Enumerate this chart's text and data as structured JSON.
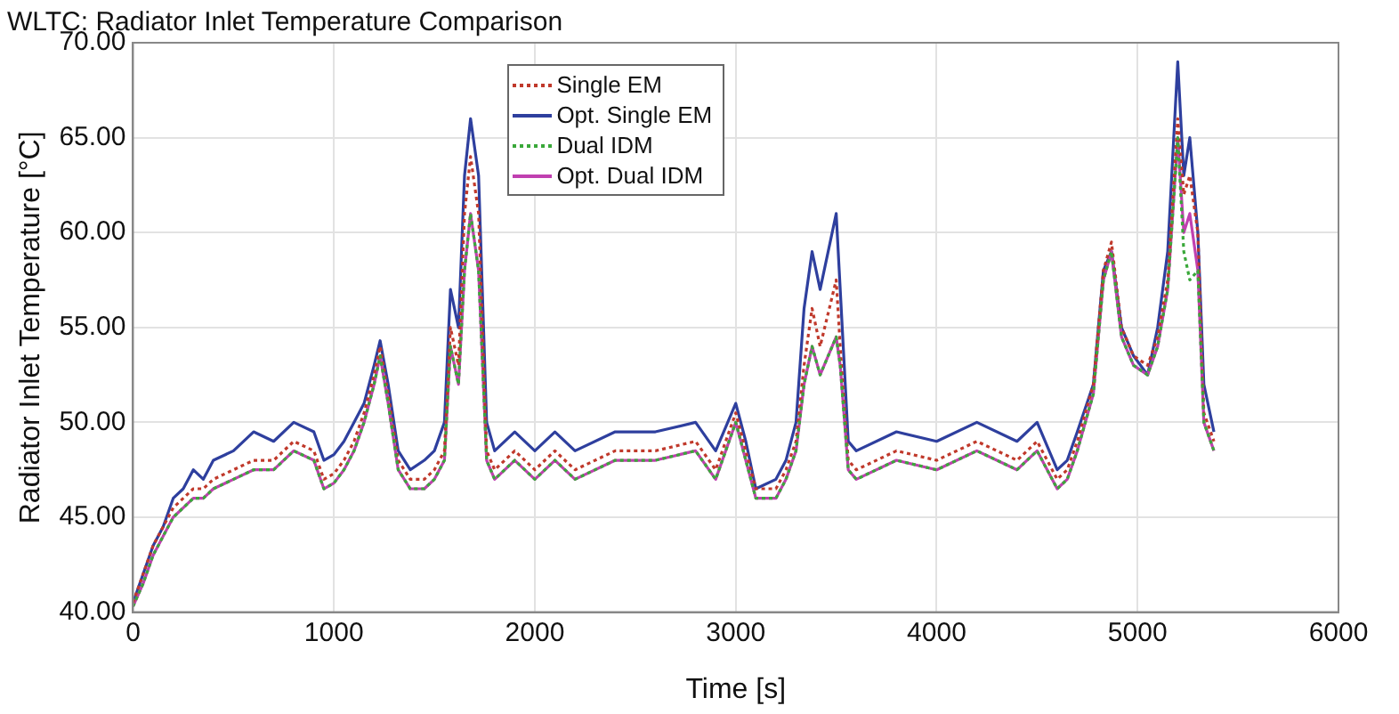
{
  "chart_data": {
    "type": "line",
    "title": "WLTC: Radiator Inlet Temperature Comparison",
    "xlabel": "Time [s]",
    "ylabel": "Radiator Inlet Temperature [°C]",
    "x": [
      0,
      50,
      100,
      150,
      200,
      250,
      300,
      350,
      400,
      500,
      600,
      700,
      800,
      900,
      950,
      1000,
      1050,
      1100,
      1150,
      1200,
      1230,
      1270,
      1320,
      1380,
      1450,
      1500,
      1550,
      1580,
      1620,
      1650,
      1680,
      1720,
      1760,
      1800,
      1900,
      2000,
      2100,
      2200,
      2400,
      2600,
      2800,
      2900,
      3000,
      3050,
      3100,
      3200,
      3250,
      3300,
      3340,
      3380,
      3420,
      3500,
      3520,
      3560,
      3600,
      3800,
      4000,
      4200,
      4400,
      4500,
      4600,
      4650,
      4700,
      4780,
      4830,
      4870,
      4920,
      4980,
      5050,
      5100,
      5150,
      5200,
      5230,
      5260,
      5300,
      5330,
      5380
    ],
    "series": [
      {
        "name": "Single EM",
        "color": "#c0392b",
        "line_style": "dotted",
        "values": [
          40.5,
          42,
          43.5,
          44.5,
          45.5,
          46,
          46.5,
          46.5,
          47,
          47.5,
          48,
          48,
          49,
          48.5,
          47,
          47.3,
          48,
          49,
          50.5,
          52.5,
          54,
          51.5,
          48,
          47,
          47,
          47.5,
          48.5,
          55,
          53,
          61,
          64,
          61,
          48.5,
          47.5,
          48.5,
          47.5,
          48.5,
          47.5,
          48.5,
          48.5,
          49,
          47.5,
          50.5,
          48.5,
          46.5,
          46.5,
          47.5,
          49,
          53,
          56,
          54,
          57.5,
          54,
          48,
          47.5,
          48.5,
          48,
          49,
          48,
          49,
          47,
          47.5,
          49,
          52,
          58,
          59.5,
          55,
          53.5,
          53,
          54.5,
          57.5,
          66,
          62,
          63,
          60,
          50.5,
          49
        ]
      },
      {
        "name": "Opt. Single EM",
        "color": "#2e3f9e",
        "line_style": "solid",
        "values": [
          40.5,
          42,
          43.5,
          44.5,
          46,
          46.5,
          47.5,
          47,
          48,
          48.5,
          49.5,
          49,
          50,
          49.5,
          48,
          48.3,
          49,
          50,
          51,
          53,
          54.3,
          52,
          48.5,
          47.5,
          48,
          48.5,
          50,
          57,
          55,
          63,
          66,
          63,
          50,
          48.5,
          49.5,
          48.5,
          49.5,
          48.5,
          49.5,
          49.5,
          50,
          48.5,
          51,
          49,
          46.5,
          47,
          48,
          50,
          56,
          59,
          57,
          61,
          57,
          49,
          48.5,
          49.5,
          49,
          50,
          49,
          50,
          47.5,
          48,
          49.5,
          52,
          58,
          59,
          55,
          53.5,
          52.5,
          55,
          59,
          69,
          63,
          65,
          60,
          52,
          49.5
        ]
      },
      {
        "name": "Dual IDM",
        "color": "#3aa83a",
        "line_style": "dotted",
        "values": [
          40.3,
          41.5,
          43,
          44,
          45,
          45.5,
          46,
          46,
          46.5,
          47,
          47.5,
          47.5,
          48.5,
          48,
          46.5,
          46.8,
          47.5,
          48.5,
          50,
          52,
          53.5,
          51,
          47.5,
          46.5,
          46.5,
          47,
          48,
          54,
          52,
          58,
          61,
          58,
          48,
          47,
          48,
          47,
          48,
          47,
          48,
          48,
          48.5,
          47,
          50,
          48,
          46,
          46,
          47,
          48.5,
          52,
          54,
          52.5,
          54.5,
          53,
          47.5,
          47,
          48,
          47.5,
          48.5,
          47.5,
          48.5,
          46.5,
          47,
          48.5,
          51.5,
          57.5,
          59,
          54.5,
          53,
          52.5,
          54,
          57,
          65,
          59,
          57.5,
          58,
          50,
          48.5
        ]
      },
      {
        "name": "Opt. Dual IDM",
        "color": "#c040b0",
        "line_style": "solid",
        "values": [
          40.3,
          41.5,
          43,
          44,
          45,
          45.5,
          46,
          46,
          46.5,
          47,
          47.5,
          47.5,
          48.5,
          48,
          46.5,
          46.8,
          47.5,
          48.5,
          50,
          52,
          53.5,
          51,
          47.5,
          46.5,
          46.5,
          47,
          48,
          54,
          52,
          58,
          61,
          58,
          48,
          47,
          48,
          47,
          48,
          47,
          48,
          48,
          48.5,
          47,
          50,
          48,
          46,
          46,
          47,
          48.5,
          52,
          54,
          52.5,
          54.5,
          53,
          47.5,
          47,
          48,
          47.5,
          48.5,
          47.5,
          48.5,
          46.5,
          47,
          48.5,
          51.5,
          57.5,
          59,
          54.5,
          53,
          52.5,
          54,
          57,
          65,
          60,
          61,
          58,
          50,
          48.5
        ]
      }
    ],
    "xlim": [
      0,
      6000
    ],
    "xticks": [
      0,
      1000,
      2000,
      3000,
      4000,
      5000,
      6000
    ],
    "ylim": [
      40,
      70
    ],
    "yticks": [
      {
        "value": 40,
        "label": "40.00"
      },
      {
        "value": 45,
        "label": "45.00"
      },
      {
        "value": 50,
        "label": "50.00"
      },
      {
        "value": 55,
        "label": "55.00"
      },
      {
        "value": 60,
        "label": "60.00"
      },
      {
        "value": 65,
        "label": "65.00"
      },
      {
        "value": 70,
        "label": "70.00"
      }
    ],
    "grid": true,
    "legend": "top",
    "marker": "none"
  }
}
